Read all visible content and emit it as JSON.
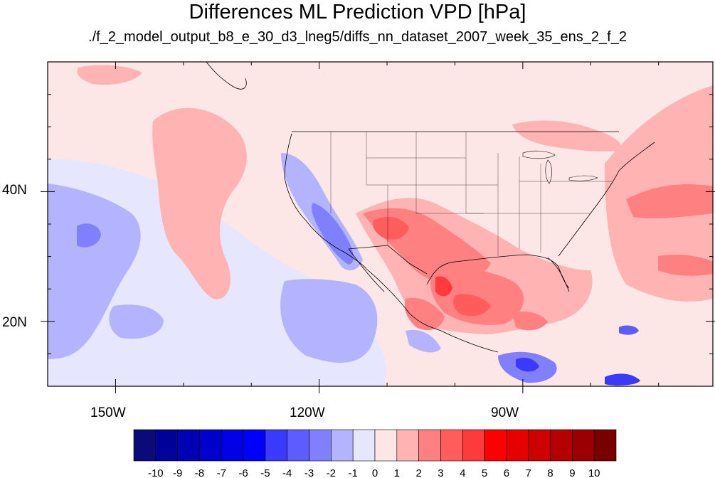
{
  "title": "Differences ML Prediction VPD [hPa]",
  "subtitle": "./f_2_model_output_b8_e_30_d3_lneg5/diffs_nn_dataset_2007_week_35_ens_2_f_2",
  "map": {
    "lat_range": [
      10,
      60
    ],
    "lon_range": [
      -160,
      -62
    ],
    "lat_ticks": [
      {
        "value": 40,
        "label": "40N"
      },
      {
        "value": 20,
        "label": "20N"
      }
    ],
    "lon_ticks": [
      {
        "value": -150,
        "label": "150W"
      },
      {
        "value": -120,
        "label": "120W"
      },
      {
        "value": -90,
        "label": "90W"
      }
    ],
    "background_color": "#fde6e6"
  },
  "colorbar": {
    "labels": [
      "-10",
      "-9",
      "-8",
      "-7",
      "-6",
      "-5",
      "-4",
      "-3",
      "-2",
      "-1",
      "0",
      "1",
      "2",
      "3",
      "4",
      "5",
      "6",
      "7",
      "8",
      "9",
      "10"
    ],
    "colors": [
      "#0a0a78",
      "#00009a",
      "#0000b4",
      "#0000cd",
      "#0000e6",
      "#0000ff",
      "#3a3aff",
      "#5c5cff",
      "#8080ff",
      "#b3b3ff",
      "#e6e6ff",
      "#ffe6e6",
      "#ffb3b3",
      "#ff8080",
      "#ff5c5c",
      "#ff3a3a",
      "#ff0000",
      "#e60000",
      "#cd0000",
      "#b40000",
      "#9a0000",
      "#780000"
    ]
  }
}
